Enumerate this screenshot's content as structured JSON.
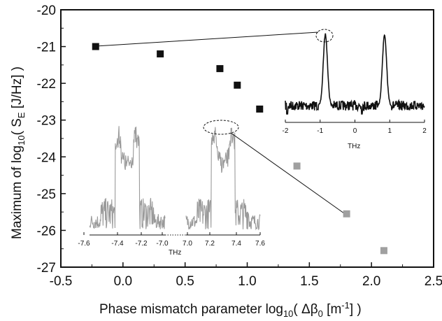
{
  "chart_data": {
    "type": "scatter",
    "title": "",
    "xlabel": "Phase mismatch parameter log10( Δβ0 [m-1] )",
    "xlabel_parts": {
      "main": "Phase mismatch parameter log",
      "sub1": "10",
      "open": "( Δβ",
      "sub2": "0",
      "unit": " [m",
      "sup": "-1",
      "close": "] )"
    },
    "ylabel": "Maximum of log10( SE [J/Hz] )",
    "ylabel_parts": {
      "main": "Maximum of log",
      "sub1": "10",
      "open": "( S",
      "sub2": "E",
      "close": " [J/Hz] )"
    },
    "xlim": [
      -0.5,
      2.5
    ],
    "ylim": [
      -27,
      -20
    ],
    "xticks": [
      "-0.5",
      "0.0",
      "0.5",
      "1.0",
      "1.5",
      "2.0",
      "2.5"
    ],
    "yticks": [
      "-20",
      "-21",
      "-22",
      "-23",
      "-24",
      "-25",
      "-26",
      "-27"
    ],
    "grid": false,
    "series": [
      {
        "color": "#111111",
        "x": [
          -0.22,
          0.3,
          0.78,
          0.92,
          1.1
        ],
        "y": [
          -21.0,
          -21.2,
          -21.6,
          -22.05,
          -22.7
        ]
      },
      {
        "color": "#a0a0a0",
        "x": [
          1.4,
          1.8,
          2.1
        ],
        "y": [
          -24.25,
          -25.55,
          -26.55
        ]
      }
    ],
    "insets": [
      {
        "name": "inset-right",
        "xlabel": "THz",
        "xticks": [
          "-2",
          "-1",
          "0",
          "1",
          "2"
        ],
        "xlim": [
          -2,
          2
        ],
        "color": "#111111",
        "peaks": [
          -0.85,
          0.85
        ]
      },
      {
        "name": "inset-left",
        "xlabel": "THz",
        "xticks": [
          "-7.6",
          "-7.4",
          "-7.2",
          "-7.0",
          "7.0",
          "7.2",
          "7.4",
          "7.6"
        ],
        "color": "#a0a0a0"
      }
    ]
  }
}
